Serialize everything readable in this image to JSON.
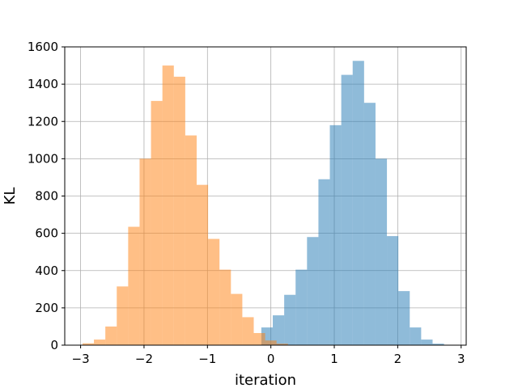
{
  "chart_data": {
    "type": "bar",
    "xlabel": "iteration",
    "ylabel": "KL",
    "xlim": [
      -3.25,
      3.08
    ],
    "ylim": [
      0,
      1600
    ],
    "x_ticks": [
      -3,
      -2,
      -1,
      0,
      1,
      2,
      3
    ],
    "y_ticks": [
      0,
      200,
      400,
      600,
      800,
      1000,
      1200,
      1400,
      1600
    ],
    "grid": true,
    "legend": "none",
    "series": [
      {
        "color": "#1f77b4",
        "opacity": 0.5,
        "bin_edges": [
          -0.15,
          0.03,
          0.21,
          0.39,
          0.57,
          0.75,
          0.93,
          1.11,
          1.29,
          1.47,
          1.65,
          1.83,
          2.01,
          2.19,
          2.37,
          2.55,
          2.73
        ],
        "values": [
          95,
          160,
          270,
          405,
          580,
          890,
          1180,
          1450,
          1525,
          1300,
          1000,
          585,
          290,
          95,
          30,
          8
        ]
      },
      {
        "color": "#ff7f0e",
        "opacity": 0.5,
        "bin_edges": [
          -2.97,
          -2.79,
          -2.61,
          -2.43,
          -2.25,
          -2.07,
          -1.89,
          -1.71,
          -1.53,
          -1.35,
          -1.17,
          -0.99,
          -0.81,
          -0.63,
          -0.45,
          -0.27,
          -0.09,
          0.09,
          0.27
        ],
        "values": [
          10,
          30,
          100,
          315,
          635,
          1000,
          1310,
          1500,
          1440,
          1125,
          860,
          570,
          405,
          275,
          150,
          65,
          25,
          8
        ]
      }
    ]
  }
}
